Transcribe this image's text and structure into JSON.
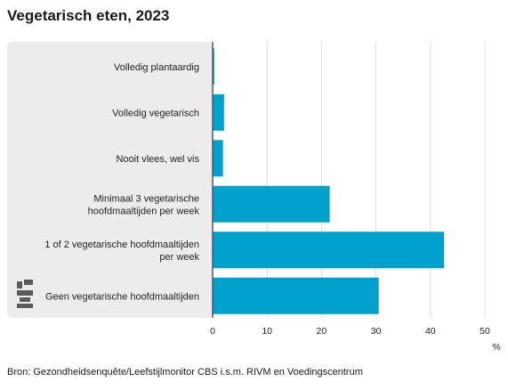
{
  "title": "Vegetarisch eten, 2023",
  "source": "Bron: Gezondheidsenquête/Leefstijlmonitor CBS i.s.m. RIVM en Voedingscentrum",
  "colors": {
    "bar": "#00a1cd",
    "label_panel": "#ececec",
    "grid": "#dcdcdc",
    "axis": "#555555",
    "logo": "#5a5a5a"
  },
  "logo": {
    "icon": "cbs-logo-icon",
    "text": "cbs"
  },
  "chart_data": {
    "type": "bar",
    "orientation": "horizontal",
    "categories": [
      [
        "Volledig plantaardig"
      ],
      [
        "Volledig vegetarisch"
      ],
      [
        "Nooit vlees, wel vis"
      ],
      [
        "Minimaal 3 vegetarische",
        "hoofdmaaltijden per week"
      ],
      [
        "1 of 2 vegetarische hoofdmaaltijden",
        "per week"
      ],
      [
        "Geen vegetarische hoofdmaaltijden"
      ]
    ],
    "values": [
      0.3,
      2.1,
      1.9,
      21.5,
      42.5,
      30.5
    ],
    "xlim": [
      0,
      50
    ],
    "xticks": [
      0,
      10,
      20,
      30,
      40,
      50
    ],
    "xlabel": "%",
    "grid": true
  }
}
